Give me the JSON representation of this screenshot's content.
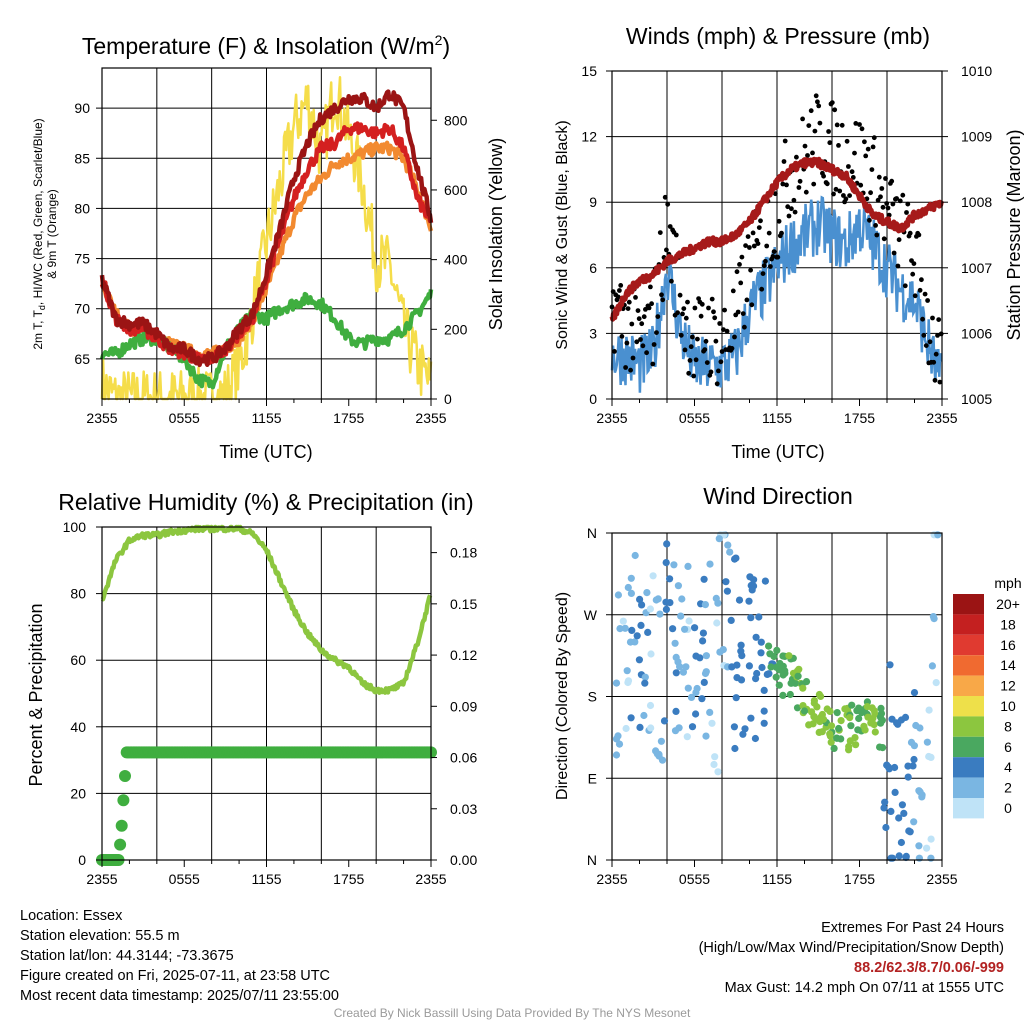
{
  "colors": {
    "red": "#d42020",
    "darkred": "#9b1414",
    "orange": "#f28a30",
    "yellow": "#f5dd4a",
    "green": "#3fae3f",
    "blue": "#4a90d0",
    "maroon": "#a61a1a",
    "lightgreen": "#8cc63f",
    "precip": "#3fae3f"
  },
  "time_ticks": [
    "2355",
    "0555",
    "1155",
    "1755",
    "2355"
  ],
  "panels": {
    "temp": {
      "title_main": "Temperature (F) & Insolation (W/m",
      "title_sup": "2",
      "title_end": ")",
      "ylabel_left_1": "2m T, T",
      "ylabel_left_1_sub": "d",
      "ylabel_left_1_end": ", HI/WC (Red, Green, Scarlet/Blue)",
      "ylabel_left_2": "& 9m T (Orange)",
      "ylabel_right": "Solar Insolation (Yellow)",
      "xlabel": "Time (UTC)"
    },
    "wind": {
      "title": "Winds (mph) & Pressure (mb)",
      "ylabel_left": "Sonic Wind & Gust (Blue, Black)",
      "ylabel_right": "Station Pressure (Maroon)",
      "xlabel": "Time (UTC)"
    },
    "rh": {
      "title": "Relative Humidity (%) & Precipitation (in)",
      "ylabel_left": "Percent & Precipitation"
    },
    "dir": {
      "title": "Wind Direction",
      "ylabel_left": "Direction (Colored By Speed)",
      "legend_title": "mph",
      "legend_labels": [
        "20+",
        "18",
        "16",
        "14",
        "12",
        "10",
        "8",
        "6",
        "4",
        "2",
        "0"
      ],
      "legend_colors": [
        "#9b1414",
        "#c42020",
        "#e03a30",
        "#f06a30",
        "#f8a848",
        "#eee04a",
        "#8cc63f",
        "#4aa860",
        "#3a7cc0",
        "#7ab6e2",
        "#bfe3f7"
      ]
    }
  },
  "chart_data": [
    {
      "type": "line",
      "title": "Temperature (F) & Insolation (W/m2)",
      "xlabel": "Time (UTC)",
      "xticks": [
        "2355",
        "0555",
        "1155",
        "1755",
        "2355"
      ],
      "xlim": [
        0,
        24
      ],
      "ylabel": "2m T, Td, HI/WC (Red, Green, Scarlet/Blue) & 9m T (Orange)",
      "ylim": [
        61,
        94
      ],
      "yticks": [
        65,
        70,
        75,
        80,
        85,
        90
      ],
      "y2label": "Solar Insolation (Yellow)",
      "y2lim": [
        0,
        950
      ],
      "y2ticks": [
        0,
        200,
        400,
        600,
        800
      ],
      "x": [
        0,
        1,
        2,
        3,
        4,
        5,
        6,
        7,
        8,
        9,
        10,
        11,
        12,
        13,
        14,
        15,
        16,
        17,
        18,
        19,
        20,
        21,
        22,
        23,
        24
      ],
      "series": [
        {
          "name": "2m T",
          "axis": "left",
          "values": [
            73,
            69,
            68,
            68,
            67,
            66,
            65.5,
            65,
            65,
            66,
            67.5,
            69,
            73,
            77,
            81,
            84,
            86,
            86.5,
            88,
            88,
            87.5,
            88,
            86,
            81,
            78.5
          ]
        },
        {
          "name": "HI/WC",
          "axis": "left",
          "values": [
            73,
            69,
            68.5,
            68.5,
            67.5,
            66,
            66,
            65,
            65,
            66,
            68,
            69.5,
            73.5,
            78,
            83,
            86.5,
            89,
            90,
            91,
            91,
            90,
            91.5,
            90,
            84,
            79
          ]
        },
        {
          "name": "9m T",
          "axis": "left",
          "values": [
            72.5,
            69.5,
            68,
            68,
            67,
            66.5,
            66,
            65.5,
            65.5,
            66,
            67,
            69,
            72,
            75.5,
            79,
            81.5,
            83,
            84.5,
            85,
            85.5,
            86,
            86,
            85,
            82,
            78
          ]
        },
        {
          "name": "Td",
          "axis": "left",
          "values": [
            65.5,
            65.5,
            66.5,
            67,
            67,
            66,
            65,
            63,
            62.5,
            66,
            68,
            69.5,
            69,
            70,
            70.5,
            71,
            70.5,
            69,
            67,
            66.5,
            67,
            67,
            68,
            69.5,
            71.5
          ]
        },
        {
          "name": "Solar Insolation",
          "axis": "right",
          "values": [
            40,
            0,
            0,
            0,
            0,
            0,
            0,
            0,
            0,
            10,
            90,
            250,
            450,
            620,
            780,
            860,
            700,
            890,
            760,
            620,
            400,
            380,
            200,
            100,
            40
          ]
        }
      ]
    },
    {
      "type": "line",
      "title": "Winds (mph) & Pressure (mb)",
      "xlabel": "Time (UTC)",
      "xticks": [
        "2355",
        "0555",
        "1155",
        "1755",
        "2355"
      ],
      "xlim": [
        0,
        24
      ],
      "ylabel": "Sonic Wind & Gust (Blue, Black)",
      "ylim": [
        0,
        15
      ],
      "yticks": [
        0,
        3,
        6,
        9,
        12,
        15
      ],
      "y2label": "Station Pressure (Maroon)",
      "y2lim": [
        1005,
        1010
      ],
      "y2ticks": [
        1005,
        1006,
        1007,
        1008,
        1009,
        1010
      ],
      "x": [
        0,
        1,
        2,
        3,
        4,
        5,
        6,
        7,
        8,
        9,
        10,
        11,
        12,
        13,
        14,
        15,
        16,
        17,
        18,
        19,
        20,
        21,
        22,
        23,
        24
      ],
      "series": [
        {
          "name": "Sonic Wind",
          "axis": "left",
          "values": [
            2,
            2,
            1.5,
            2,
            6,
            3,
            1.5,
            1.5,
            1.5,
            2,
            4,
            5,
            6,
            7,
            7.5,
            8,
            7.5,
            7,
            8,
            7,
            6,
            5,
            4.5,
            2.5,
            0.5
          ]
        },
        {
          "name": "Gust",
          "axis": "left",
          "values": [
            4.5,
            3.5,
            2.5,
            3.5,
            8,
            4.5,
            2.5,
            3,
            2.5,
            3.5,
            6,
            7,
            8.5,
            10.5,
            11,
            12,
            11.5,
            11,
            11,
            10,
            8.5,
            7.5,
            6.5,
            3.5,
            1
          ]
        },
        {
          "name": "Station Pressure",
          "axis": "right",
          "values": [
            1006.2,
            1006.6,
            1006.8,
            1006.9,
            1007.1,
            1007.2,
            1007.3,
            1007.4,
            1007.4,
            1007.5,
            1007.7,
            1008.0,
            1008.3,
            1008.5,
            1008.6,
            1008.6,
            1008.5,
            1008.4,
            1008.1,
            1007.8,
            1007.7,
            1007.6,
            1007.8,
            1007.9,
            1008.0
          ]
        }
      ]
    },
    {
      "type": "line",
      "title": "Relative Humidity (%) & Precipitation (in)",
      "xticks": [
        "2355",
        "0555",
        "1155",
        "1755",
        "2355"
      ],
      "xlim": [
        0,
        24
      ],
      "ylabel": "Percent & Precipitation",
      "ylim": [
        0,
        100
      ],
      "yticks": [
        0,
        20,
        40,
        60,
        80,
        100
      ],
      "y2lim": [
        0,
        0.195
      ],
      "y2ticks": [
        "0.00",
        "0.03",
        "0.06",
        "0.09",
        "0.12",
        "0.15",
        "0.18"
      ],
      "x": [
        0,
        1,
        2,
        3,
        4,
        5,
        6,
        7,
        8,
        9,
        10,
        11,
        12,
        13,
        14,
        15,
        16,
        17,
        18,
        19,
        20,
        21,
        22,
        23,
        24
      ],
      "series": [
        {
          "name": "Relative Humidity",
          "axis": "left",
          "values": [
            78,
            90,
            96,
            97.5,
            97.5,
            98.5,
            99,
            99.5,
            99.5,
            99.5,
            99.5,
            98,
            93,
            84,
            75,
            68,
            63,
            60,
            58,
            53,
            51,
            51,
            53,
            65,
            80
          ]
        },
        {
          "name": "Precipitation",
          "axis": "right",
          "x": [
            0,
            0.3,
            0.6,
            0.9,
            1.2,
            1.4,
            1.6,
            1.8,
            2.5,
            5,
            10,
            15,
            20,
            24
          ],
          "values": [
            0,
            0,
            0,
            0,
            0,
            0.015,
            0.04,
            0.063,
            0.063,
            0.063,
            0.063,
            0.063,
            0.063,
            0.063
          ]
        }
      ]
    },
    {
      "type": "scatter",
      "title": "Wind Direction",
      "xticks": [
        "2355",
        "0555",
        "1155",
        "1755",
        "2355"
      ],
      "xlim": [
        0,
        24
      ],
      "ylabel": "Direction (Colored By Speed)",
      "yticks": [
        "N",
        "E",
        "S",
        "W",
        "N"
      ],
      "ylim": [
        0,
        360
      ],
      "legend_title": "mph",
      "legend_placement": "right",
      "x": [
        0.5,
        1,
        1.5,
        2,
        2.5,
        3,
        3.5,
        4,
        4.5,
        5,
        5.5,
        6,
        6.5,
        7,
        7.5,
        8,
        8.5,
        9,
        9.5,
        10,
        10.5,
        11,
        11.5,
        12,
        12.5,
        13,
        13.5,
        14,
        14.5,
        15,
        15.5,
        16,
        16.5,
        17,
        17.5,
        18,
        18.5,
        19,
        19.5,
        20,
        20.5,
        21,
        21.5,
        22,
        22.5,
        23,
        23.5
      ],
      "y": [
        200,
        220,
        260,
        240,
        190,
        230,
        210,
        250,
        230,
        200,
        240,
        215,
        260,
        230,
        200,
        300,
        240,
        225,
        210,
        220,
        225,
        220,
        215,
        215,
        205,
        200,
        190,
        180,
        170,
        160,
        150,
        145,
        150,
        145,
        150,
        155,
        160,
        165,
        145,
        120,
        90,
        75,
        70,
        150,
        100,
        60,
        300
      ],
      "values": [
        2,
        1,
        3,
        4,
        3,
        1,
        2,
        4,
        3,
        2,
        1,
        3,
        4,
        2,
        1,
        1,
        3,
        4,
        4,
        4,
        4,
        4,
        5,
        6,
        6,
        7,
        7,
        7,
        8,
        8,
        7,
        7,
        7,
        8,
        7,
        6,
        7,
        8,
        6,
        4,
        4,
        4,
        3,
        3,
        2,
        1,
        1
      ]
    }
  ],
  "info": {
    "location": "Location: Essex",
    "elevation": "Station elevation: 55.5 m",
    "latlon": "Station lat/lon: 44.3144; -73.3675",
    "created": "Figure created on Fri, 2025-07-11, at 23:58 UTC",
    "recent": "Most recent data timestamp: 2025/07/11 23:55:00",
    "extremes_title": "Extremes For Past 24 Hours",
    "extremes_desc": "(High/Low/Max Wind/Precipitation/Snow Depth)",
    "extremes_values": "88.2/62.3/8.7/0.06/-999",
    "max_gust": "Max Gust: 14.2 mph On 07/11 at 1555 UTC",
    "credit": "Created By Nick Bassill Using Data Provided By The NYS Mesonet"
  }
}
